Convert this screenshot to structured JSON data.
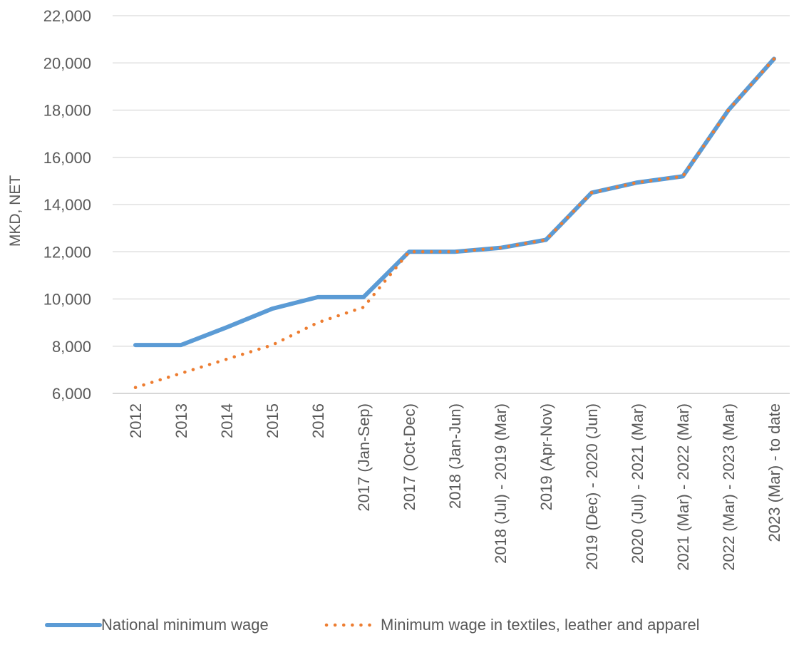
{
  "chart_data": {
    "type": "line",
    "ylabel": "MKD, NET",
    "xlabel": "",
    "ylim": [
      6000,
      22000
    ],
    "yticks": [
      6000,
      8000,
      10000,
      12000,
      14000,
      16000,
      18000,
      20000,
      22000
    ],
    "ytick_labels": [
      "6,000",
      "8,000",
      "10,000",
      "12,000",
      "14,000",
      "16,000",
      "18,000",
      "20,000",
      "22,000"
    ],
    "grid": "horizontal",
    "legend_position": "bottom",
    "categories": [
      "2012",
      "2013",
      "2014",
      "2015",
      "2016",
      "2017 (Jan-Sep)",
      "2017 (Oct-Dec)",
      "2018 (Jan-Jun)",
      "2018 (Jul) - 2019 (Mar)",
      "2019 (Apr-Nov)",
      "2019 (Dec) - 2020 (Jun)",
      "2020 (Jul) - 2021 (Mar)",
      "2021 (Mar) - 2022 (Mar)",
      "2022 (Mar) - 2023 (Mar)",
      "2023 (Mar) - to date"
    ],
    "series": [
      {
        "name": "National minimum wage",
        "color": "#5B9BD5",
        "style": "solid",
        "values": [
          8050,
          8050,
          8800,
          9590,
          10080,
          10080,
          12000,
          12000,
          12165,
          12507,
          14500,
          14934,
          15194,
          18000,
          20175
        ]
      },
      {
        "name": "Minimum wage in textiles, leather and apparel",
        "color": "#ED7D31",
        "style": "dotted",
        "values": [
          6250,
          6850,
          7450,
          8050,
          9000,
          9650,
          12000,
          12000,
          12165,
          12507,
          14500,
          14934,
          15194,
          18000,
          20175
        ]
      }
    ]
  }
}
